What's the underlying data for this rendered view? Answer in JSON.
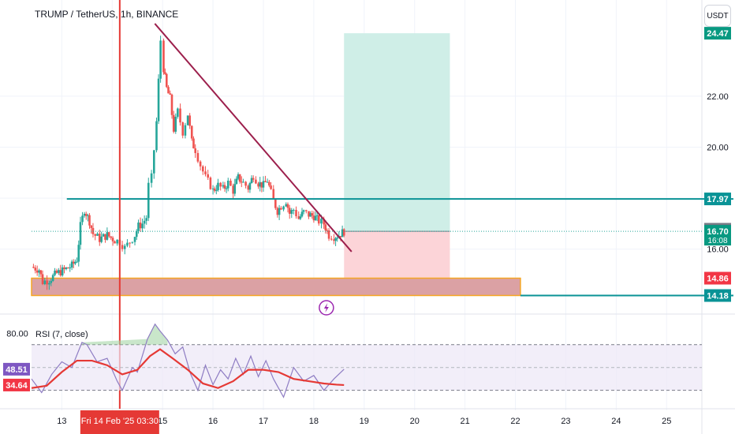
{
  "header": {
    "symbol_title": "TRUMP / TetherUS, 1h, BINANCE",
    "currency_label": "USDT"
  },
  "colors": {
    "bull": "#26a69a",
    "bear": "#ef5350",
    "trendline": "#9c1f4c",
    "level_line": "#0a9396",
    "marker_red": "#e53935",
    "rsi_line": "#8e7cc3",
    "rsi_ma": "#e53935",
    "target_zone": "#cfeee7",
    "stop_zone": "#fcd4d8",
    "support_zone": "#dba1a4",
    "support_border": "#f5a623",
    "lightning": "#9c27b0"
  },
  "chart_data": [
    {
      "type": "candlestick",
      "title": "TRUMP / TetherUS, 1h, BINANCE",
      "x_ticks": [
        "13",
        "14",
        "15",
        "16",
        "17",
        "18",
        "19",
        "20",
        "21",
        "22",
        "23",
        "24",
        "25"
      ],
      "y_ticks": [
        16.0,
        18.0,
        20.0,
        22.0
      ],
      "y_tick_labels": [
        "16.00",
        "18.00",
        "20.00",
        "22.00"
      ],
      "xlim": [
        12.4,
        25.7
      ],
      "ylim": [
        13.7,
        25.0
      ],
      "price_labels": [
        {
          "value": 24.47,
          "text": "24.47",
          "color": "#089981"
        },
        {
          "value": 17.97,
          "text": "17.97",
          "color": "#0a9396"
        },
        {
          "value": 16.78,
          "text": "16.78",
          "color": "#787b86"
        },
        {
          "value": 16.7,
          "text": "16.70",
          "sub": "16:08",
          "color": "#089981"
        },
        {
          "value": 14.86,
          "text": "14.86",
          "color": "#f23645"
        },
        {
          "value": 14.18,
          "text": "14.18",
          "color": "#0a9396"
        }
      ],
      "crosshair_label": "Fri 14 Feb '25   03:30",
      "crosshair_x": 14.15,
      "horizontal_levels": [
        {
          "price": 17.97,
          "x_start": 13.1,
          "x_end": 25.7
        },
        {
          "price": 14.18,
          "x_start": 22.1,
          "x_end": 25.7
        }
      ],
      "trendline": {
        "x1": 14.94,
        "y1": 24.6,
        "x2": 18.75,
        "y2": 15.9
      },
      "position": {
        "x_start": 18.6,
        "x_end": 20.7,
        "entry": 16.7,
        "target": 24.47,
        "stop": 14.86
      },
      "support_zone": {
        "x_start": 12.4,
        "x_end": 22.1,
        "top": 14.86,
        "bottom": 14.18
      },
      "ohlc_path": [
        [
          12.4,
          15.3
        ],
        [
          12.55,
          15.2
        ],
        [
          12.62,
          14.72
        ],
        [
          12.75,
          14.8
        ],
        [
          12.9,
          15.05
        ],
        [
          13.05,
          15.18
        ],
        [
          13.2,
          15.35
        ],
        [
          13.3,
          15.6
        ],
        [
          13.37,
          16.9
        ],
        [
          13.45,
          17.55
        ],
        [
          13.55,
          17.1
        ],
        [
          13.62,
          16.6
        ],
        [
          13.75,
          16.4
        ],
        [
          13.9,
          16.55
        ],
        [
          14.05,
          16.35
        ],
        [
          14.15,
          16.3
        ],
        [
          14.25,
          16.05
        ],
        [
          14.35,
          16.3
        ],
        [
          14.45,
          16.55
        ],
        [
          14.52,
          16.9
        ],
        [
          14.6,
          17.0
        ],
        [
          14.68,
          17.25
        ],
        [
          14.72,
          18.5
        ],
        [
          14.78,
          18.8
        ],
        [
          14.83,
          19.9
        ],
        [
          14.88,
          21.0
        ],
        [
          14.92,
          22.6
        ],
        [
          14.96,
          24.2
        ],
        [
          15.02,
          23.1
        ],
        [
          15.08,
          22.3
        ],
        [
          15.15,
          21.9
        ],
        [
          15.22,
          20.7
        ],
        [
          15.3,
          21.4
        ],
        [
          15.4,
          20.6
        ],
        [
          15.5,
          21.3
        ],
        [
          15.58,
          20.2
        ],
        [
          15.65,
          19.9
        ],
        [
          15.75,
          19.3
        ],
        [
          15.85,
          18.8
        ],
        [
          15.95,
          18.5
        ],
        [
          16.0,
          18.3
        ],
        [
          16.1,
          18.5
        ],
        [
          16.2,
          18.35
        ],
        [
          16.3,
          18.6
        ],
        [
          16.4,
          18.3
        ],
        [
          16.5,
          18.8
        ],
        [
          16.6,
          18.6
        ],
        [
          16.7,
          18.4
        ],
        [
          16.8,
          18.9
        ],
        [
          16.9,
          18.6
        ],
        [
          17.0,
          18.5
        ],
        [
          17.08,
          18.7
        ],
        [
          17.15,
          18.2
        ],
        [
          17.2,
          17.9
        ],
        [
          17.28,
          17.5
        ],
        [
          17.35,
          17.7
        ],
        [
          17.45,
          17.9
        ],
        [
          17.52,
          17.4
        ],
        [
          17.6,
          17.55
        ],
        [
          17.7,
          17.2
        ],
        [
          17.8,
          17.45
        ],
        [
          17.9,
          17.35
        ],
        [
          18.0,
          17.3
        ],
        [
          18.1,
          17.1
        ],
        [
          18.2,
          17.0
        ],
        [
          18.3,
          16.55
        ],
        [
          18.4,
          16.5
        ],
        [
          18.5,
          16.55
        ],
        [
          18.6,
          16.7
        ]
      ]
    },
    {
      "type": "line",
      "title": "RSI (7, close)",
      "y_ticks": [
        80.0
      ],
      "y_tick_labels": [
        "80.00"
      ],
      "ylim": [
        18.0,
        92.0
      ],
      "bands": [
        70,
        50,
        30
      ],
      "current_values": [
        {
          "value": 48.51,
          "text": "48.51",
          "color": "#7e57c2"
        },
        {
          "value": 34.64,
          "text": "34.64",
          "color": "#f23645"
        }
      ],
      "series": [
        {
          "name": "RSI",
          "x": [
            12.4,
            12.6,
            12.8,
            13.0,
            13.2,
            13.4,
            13.5,
            13.7,
            13.9,
            14.1,
            14.2,
            14.4,
            14.5,
            14.7,
            14.85,
            14.95,
            15.1,
            15.25,
            15.4,
            15.55,
            15.7,
            15.85,
            16.0,
            16.15,
            16.3,
            16.45,
            16.6,
            16.75,
            16.9,
            17.05,
            17.2,
            17.4,
            17.6,
            17.8,
            18.0,
            18.2,
            18.4,
            18.6
          ],
          "values": [
            40,
            28,
            44,
            55,
            50,
            72,
            70,
            55,
            58,
            38,
            30,
            50,
            46,
            75,
            88,
            82,
            74,
            62,
            68,
            45,
            30,
            52,
            35,
            48,
            40,
            58,
            44,
            60,
            42,
            56,
            40,
            24,
            50,
            38,
            43,
            30,
            40,
            48.51
          ]
        },
        {
          "name": "MA",
          "x": [
            12.4,
            12.7,
            13.0,
            13.3,
            13.6,
            13.9,
            14.2,
            14.5,
            14.75,
            14.95,
            15.2,
            15.5,
            15.8,
            16.1,
            16.4,
            16.7,
            17.0,
            17.3,
            17.6,
            17.9,
            18.2,
            18.45,
            18.6
          ],
          "values": [
            32,
            34,
            46,
            56,
            56,
            52,
            44,
            48,
            60,
            66,
            58,
            48,
            36,
            32,
            38,
            48,
            48,
            46,
            40,
            38,
            36,
            35,
            34.64
          ]
        }
      ]
    }
  ]
}
